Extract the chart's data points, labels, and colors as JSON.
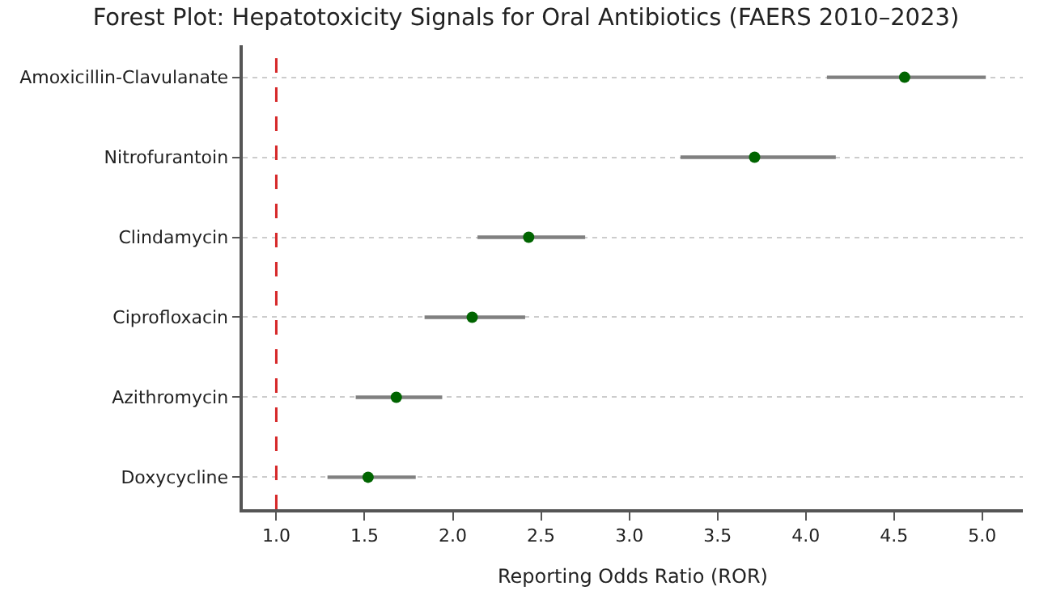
{
  "chart_data": {
    "type": "scatter",
    "orientation": "horizontal",
    "title": "Forest Plot: Hepatotoxicity Signals for Oral Antibiotics (FAERS 2010–2023)",
    "xlabel": "Reporting Odds Ratio (ROR)",
    "categories": [
      "Amoxicillin-Clavulanate",
      "Nitrofurantoin",
      "Clindamycin",
      "Ciprofloxacin",
      "Azithromycin",
      "Doxycycline"
    ],
    "series": [
      {
        "color": "#006400",
        "values": [
          4.56,
          3.71,
          2.43,
          2.11,
          1.68,
          1.52
        ],
        "errors": [
          [
            4.12,
            5.02
          ],
          [
            3.29,
            4.17
          ],
          [
            2.14,
            2.75
          ],
          [
            1.84,
            2.41
          ],
          [
            1.45,
            1.94
          ],
          [
            1.29,
            1.79
          ]
        ]
      }
    ],
    "xlim": [
      0.81,
      5.23
    ],
    "xticks": [
      {
        "value": 1,
        "label": "1.0"
      },
      {
        "value": 1.5,
        "label": "1.5"
      },
      {
        "value": 2,
        "label": "2.0"
      },
      {
        "value": 2.5,
        "label": "2.5"
      },
      {
        "value": 3,
        "label": "3.0"
      },
      {
        "value": 3.5,
        "label": "3.5"
      },
      {
        "value": 4,
        "label": "4.0"
      },
      {
        "value": 4.5,
        "label": "4.5"
      },
      {
        "value": 5,
        "label": "5.0"
      }
    ],
    "ref_lines": [
      {
        "axis": "x",
        "value": 1,
        "color": "#d62728",
        "line_style": "dashed"
      }
    ],
    "grid": "y",
    "marker": "circle"
  }
}
